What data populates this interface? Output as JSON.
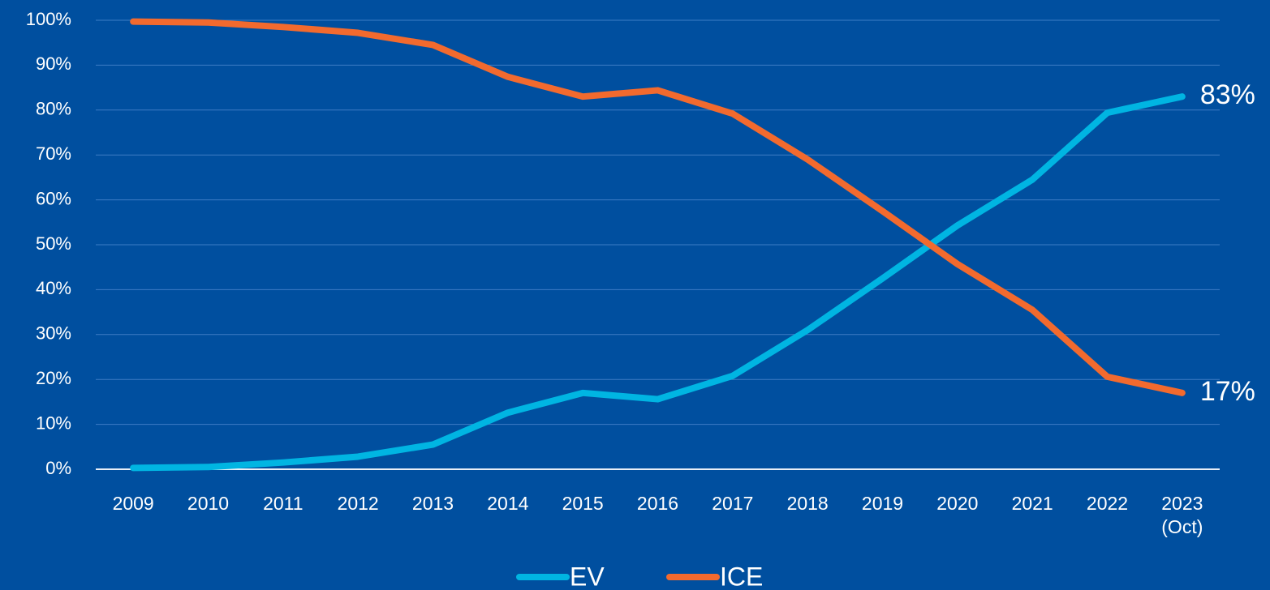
{
  "chart_data": {
    "type": "line",
    "categories": [
      "2009",
      "2010",
      "2011",
      "2012",
      "2013",
      "2014",
      "2015",
      "2016",
      "2017",
      "2018",
      "2019",
      "2020",
      "2021",
      "2022",
      "2023 (Oct)"
    ],
    "series": [
      {
        "name": "EV",
        "color": "#00b5e2",
        "values": [
          0.3,
          0.5,
          1.5,
          2.8,
          5.5,
          12.6,
          17,
          15.6,
          20.8,
          31,
          42.5,
          54.3,
          64.5,
          79.4,
          83
        ],
        "value_labels": [
          null,
          null,
          null,
          null,
          null,
          null,
          null,
          null,
          null,
          null,
          null,
          null,
          null,
          null,
          "83%"
        ]
      },
      {
        "name": "ICE",
        "color": "#f26a2e",
        "values": [
          99.7,
          99.5,
          98.5,
          97.2,
          94.5,
          87.4,
          83,
          84.4,
          79.2,
          69,
          57.5,
          45.7,
          35.5,
          20.6,
          17
        ],
        "value_labels": [
          null,
          null,
          null,
          null,
          null,
          null,
          null,
          null,
          null,
          null,
          null,
          null,
          null,
          null,
          "17%"
        ]
      }
    ],
    "ylim": [
      0,
      100
    ],
    "yticks": [
      {
        "value": 0,
        "label": "0%"
      },
      {
        "value": 10,
        "label": "10%"
      },
      {
        "value": 20,
        "label": "20%"
      },
      {
        "value": 30,
        "label": "30%"
      },
      {
        "value": 40,
        "label": "40%"
      },
      {
        "value": 50,
        "label": "50%"
      },
      {
        "value": 60,
        "label": "60%"
      },
      {
        "value": 70,
        "label": "70%"
      },
      {
        "value": 80,
        "label": "80%"
      },
      {
        "value": 90,
        "label": "90%"
      },
      {
        "value": 100,
        "label": "100%"
      }
    ],
    "grid": true,
    "legend": "bottom"
  }
}
